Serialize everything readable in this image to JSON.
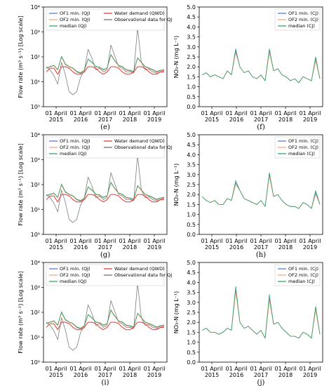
{
  "chart_data": [
    {
      "type": "line",
      "panel_label": "(e)",
      "scale": "log",
      "ylabel": "Flow rate (m³ s⁻¹) [Log scale]",
      "ylim": [
        1,
        10000
      ],
      "ytick_labels": [
        "10⁰",
        "10¹",
        "10²",
        "10³",
        "10⁴"
      ],
      "xtick_labels": [
        [
          "01 April",
          "2015"
        ],
        [
          "01 April",
          "2016"
        ],
        [
          "01 April",
          "2017"
        ],
        [
          "01 April",
          "2018"
        ],
        [
          "01 April",
          "2019"
        ]
      ],
      "legend": [
        "OF1 min. (QJ)",
        "OF2 min. (QJ)",
        "median (QJ)",
        "Water demand (QWD)",
        "Observational data for QJ"
      ],
      "series": [
        {
          "name": "OF1 min. (QJ)",
          "color": "#4a6fd8",
          "values": [
            35,
            40,
            45,
            30,
            100,
            50,
            40,
            35,
            25,
            22,
            28,
            80,
            60,
            40,
            38,
            30,
            35,
            120,
            70,
            45,
            40,
            30,
            28,
            25,
            90,
            60,
            40,
            35,
            30,
            25,
            28,
            30
          ]
        },
        {
          "name": "OF2 min. (QJ)",
          "color": "#f4a27a",
          "values": [
            34,
            39,
            44,
            29,
            95,
            48,
            39,
            34,
            24,
            21,
            27,
            78,
            58,
            39,
            37,
            29,
            34,
            115,
            68,
            44,
            39,
            29,
            27,
            24,
            88,
            58,
            39,
            34,
            29,
            24,
            27,
            29
          ]
        },
        {
          "name": "median (QJ)",
          "color": "#2ca05a",
          "values": [
            36,
            41,
            46,
            31,
            105,
            52,
            41,
            36,
            26,
            23,
            29,
            82,
            62,
            41,
            39,
            31,
            36,
            125,
            72,
            46,
            41,
            31,
            29,
            26,
            92,
            62,
            41,
            36,
            31,
            26,
            29,
            31
          ]
        },
        {
          "name": "Water demand (QWD)",
          "color": "#e0302a",
          "values": [
            25,
            35,
            35,
            20,
            40,
            40,
            35,
            25,
            20,
            20,
            25,
            40,
            40,
            35,
            25,
            20,
            25,
            40,
            40,
            35,
            25,
            20,
            20,
            25,
            40,
            40,
            35,
            25,
            20,
            20,
            25,
            25
          ]
        },
        {
          "name": "Observational data for QJ",
          "color": "#666666",
          "values": [
            40,
            30,
            18,
            8,
            60,
            20,
            4,
            3,
            4,
            15,
            28,
            200,
            90,
            30,
            35,
            25,
            30,
            300,
            110,
            40,
            35,
            25,
            25,
            22,
            1500,
            60,
            30,
            32,
            25,
            22,
            24,
            28
          ]
        }
      ]
    },
    {
      "type": "line",
      "panel_label": "(f)",
      "scale": "linear",
      "ylabel": "NO₃-N (mg L⁻¹)",
      "ylim": [
        0,
        5
      ],
      "ytick_labels": [
        "0.0",
        "0.5",
        "1.0",
        "1.5",
        "2.0",
        "2.5",
        "3.0",
        "3.5",
        "4.0",
        "4.5",
        "5.0"
      ],
      "xtick_labels": [
        [
          "01 April",
          "2015"
        ],
        [
          "01 April",
          "2016"
        ],
        [
          "01 April",
          "2017"
        ],
        [
          "01 April",
          "2018"
        ],
        [
          "01 April",
          "2019"
        ]
      ],
      "legend": [
        "OF1 min. (CJ)",
        "OF2 min. (CJ)",
        "median (CJ)"
      ],
      "series": [
        {
          "name": "OF1 min. (CJ)",
          "color": "#4a6fd8",
          "values": [
            1.6,
            1.7,
            1.5,
            1.6,
            1.5,
            1.4,
            1.8,
            1.6,
            2.8,
            2.0,
            1.7,
            1.8,
            1.5,
            1.4,
            1.6,
            1.3,
            2.8,
            1.8,
            1.9,
            1.6,
            1.5,
            1.3,
            1.4,
            1.2,
            1.5,
            1.4,
            1.3,
            2.4,
            1.4
          ]
        },
        {
          "name": "OF2 min. (CJ)",
          "color": "#f4a27a",
          "values": [
            1.6,
            1.7,
            1.5,
            1.6,
            1.5,
            1.4,
            1.8,
            1.6,
            2.7,
            2.0,
            1.7,
            1.8,
            1.5,
            1.4,
            1.6,
            1.3,
            2.7,
            1.8,
            1.9,
            1.6,
            1.5,
            1.3,
            1.4,
            1.2,
            1.5,
            1.4,
            1.3,
            2.3,
            1.4
          ]
        },
        {
          "name": "median (CJ)",
          "color": "#2ca05a",
          "values": [
            1.6,
            1.7,
            1.5,
            1.6,
            1.5,
            1.4,
            1.8,
            1.6,
            2.9,
            2.0,
            1.7,
            1.8,
            1.5,
            1.4,
            1.6,
            1.3,
            2.9,
            1.8,
            1.9,
            1.6,
            1.5,
            1.3,
            1.4,
            1.2,
            1.5,
            1.4,
            1.3,
            2.5,
            1.4
          ]
        }
      ]
    },
    {
      "type": "line",
      "panel_label": "(g)",
      "scale": "log",
      "ylabel": "Flow rate (m³ s⁻¹) [Log scale]",
      "ylim": [
        1,
        10000
      ],
      "ytick_labels": [
        "10⁰",
        "10¹",
        "10²",
        "10³",
        "10⁴"
      ],
      "xtick_labels": [
        [
          "01 April",
          "2015"
        ],
        [
          "01 April",
          "2016"
        ],
        [
          "01 April",
          "2017"
        ],
        [
          "01 April",
          "2018"
        ],
        [
          "01 April",
          "2019"
        ]
      ],
      "legend": [
        "OF1 min. (QJ)",
        "OF2 min. (QJ)",
        "median (QJ)",
        "Water demand (QWD)",
        "Observational data for QJ"
      ],
      "series": [
        {
          "name": "OF1 min. (QJ)",
          "color": "#4a6fd8",
          "values": [
            35,
            40,
            45,
            30,
            100,
            50,
            40,
            35,
            25,
            22,
            28,
            80,
            60,
            40,
            38,
            30,
            35,
            120,
            70,
            45,
            40,
            30,
            28,
            25,
            90,
            60,
            40,
            35,
            30,
            25,
            28,
            30
          ]
        },
        {
          "name": "OF2 min. (QJ)",
          "color": "#f4a27a",
          "values": [
            34,
            39,
            44,
            29,
            95,
            48,
            39,
            34,
            24,
            21,
            27,
            78,
            58,
            39,
            37,
            29,
            34,
            115,
            68,
            44,
            39,
            29,
            27,
            24,
            88,
            58,
            39,
            34,
            29,
            24,
            27,
            29
          ]
        },
        {
          "name": "median (QJ)",
          "color": "#2ca05a",
          "values": [
            36,
            41,
            46,
            31,
            105,
            52,
            41,
            36,
            26,
            23,
            29,
            82,
            62,
            41,
            39,
            31,
            36,
            125,
            72,
            46,
            41,
            31,
            29,
            26,
            92,
            62,
            41,
            36,
            31,
            26,
            29,
            31
          ]
        },
        {
          "name": "Water demand (QWD)",
          "color": "#e0302a",
          "values": [
            25,
            35,
            35,
            20,
            40,
            40,
            35,
            25,
            20,
            20,
            25,
            40,
            40,
            35,
            25,
            20,
            25,
            40,
            40,
            35,
            25,
            20,
            20,
            25,
            40,
            40,
            35,
            25,
            20,
            20,
            25,
            25
          ]
        },
        {
          "name": "Observational data for QJ",
          "color": "#666666",
          "values": [
            40,
            30,
            18,
            8,
            60,
            20,
            4,
            3,
            4,
            15,
            28,
            200,
            90,
            30,
            35,
            25,
            30,
            300,
            110,
            40,
            35,
            25,
            25,
            22,
            1500,
            60,
            30,
            32,
            25,
            22,
            24,
            28
          ]
        }
      ]
    },
    {
      "type": "line",
      "panel_label": "(h)",
      "scale": "linear",
      "ylabel": "NO₃-N (mg L⁻¹)",
      "ylim": [
        0,
        5
      ],
      "ytick_labels": [
        "0.0",
        "0.5",
        "1.0",
        "1.5",
        "2.0",
        "2.5",
        "3.0",
        "3.5",
        "4.0",
        "4.5",
        "5.0"
      ],
      "xtick_labels": [
        [
          "01 April",
          "2015"
        ],
        [
          "01 April",
          "2016"
        ],
        [
          "01 April",
          "2017"
        ],
        [
          "01 April",
          "2018"
        ],
        [
          "01 April",
          "2019"
        ]
      ],
      "legend": [
        "OF1 min. (CJ)",
        "OF2 min. (CJ)",
        "median (CJ)"
      ],
      "series": [
        {
          "name": "OF1 min. (CJ)",
          "color": "#4a6fd8",
          "values": [
            1.9,
            1.7,
            1.6,
            1.7,
            1.5,
            1.5,
            1.8,
            1.7,
            2.6,
            2.2,
            1.8,
            1.7,
            1.6,
            1.5,
            1.7,
            1.4,
            3.0,
            1.9,
            2.0,
            1.7,
            1.5,
            1.4,
            1.4,
            1.3,
            1.6,
            1.5,
            1.3,
            2.1,
            1.5
          ]
        },
        {
          "name": "OF2 min. (CJ)",
          "color": "#f4a27a",
          "values": [
            1.9,
            1.7,
            1.6,
            1.7,
            1.5,
            1.5,
            1.8,
            1.7,
            2.5,
            2.2,
            1.8,
            1.7,
            1.6,
            1.5,
            1.7,
            1.4,
            2.9,
            1.9,
            2.0,
            1.7,
            1.5,
            1.4,
            1.4,
            1.3,
            1.6,
            1.5,
            1.3,
            2.0,
            1.5
          ]
        },
        {
          "name": "median (CJ)",
          "color": "#2ca05a",
          "values": [
            1.9,
            1.7,
            1.6,
            1.7,
            1.5,
            1.5,
            1.8,
            1.7,
            2.7,
            2.2,
            1.8,
            1.7,
            1.6,
            1.5,
            1.7,
            1.4,
            3.1,
            1.9,
            2.0,
            1.7,
            1.5,
            1.4,
            1.4,
            1.3,
            1.6,
            1.5,
            1.3,
            2.2,
            1.5
          ]
        }
      ]
    },
    {
      "type": "line",
      "panel_label": "(i)",
      "scale": "log",
      "ylabel": "Flow rate (m³ s⁻¹) [Log scale]",
      "ylim": [
        1,
        10000
      ],
      "ytick_labels": [
        "10⁰",
        "10¹",
        "10²",
        "10³",
        "10⁴"
      ],
      "xtick_labels": [
        [
          "01 April",
          "2015"
        ],
        [
          "01 April",
          "2016"
        ],
        [
          "01 April",
          "2017"
        ],
        [
          "01 April",
          "2018"
        ],
        [
          "01 April",
          "2019"
        ]
      ],
      "legend": [
        "OF1 min. (QJ)",
        "OF2 min. (QJ)",
        "median (QJ)",
        "Water demand (QWD)",
        "Observational data for QJ"
      ],
      "series": [
        {
          "name": "OF1 min. (QJ)",
          "color": "#4a6fd8",
          "values": [
            35,
            40,
            45,
            30,
            100,
            50,
            40,
            35,
            25,
            22,
            28,
            80,
            60,
            40,
            38,
            30,
            35,
            120,
            70,
            45,
            40,
            30,
            28,
            25,
            90,
            60,
            40,
            35,
            30,
            25,
            28,
            30
          ]
        },
        {
          "name": "OF2 min. (QJ)",
          "color": "#f4a27a",
          "values": [
            34,
            39,
            44,
            29,
            95,
            48,
            39,
            34,
            24,
            21,
            27,
            78,
            58,
            39,
            37,
            29,
            34,
            115,
            68,
            44,
            39,
            29,
            27,
            24,
            88,
            58,
            39,
            34,
            29,
            24,
            27,
            29
          ]
        },
        {
          "name": "median (QJ)",
          "color": "#2ca05a",
          "values": [
            36,
            41,
            46,
            31,
            105,
            52,
            41,
            36,
            26,
            23,
            29,
            82,
            62,
            41,
            39,
            31,
            36,
            125,
            72,
            46,
            41,
            31,
            29,
            26,
            92,
            62,
            41,
            36,
            31,
            26,
            29,
            31
          ]
        },
        {
          "name": "Water demand (QWD)",
          "color": "#e0302a",
          "values": [
            25,
            35,
            35,
            20,
            40,
            40,
            35,
            25,
            20,
            20,
            25,
            40,
            40,
            35,
            25,
            20,
            25,
            40,
            40,
            35,
            25,
            20,
            20,
            25,
            40,
            40,
            35,
            25,
            20,
            20,
            25,
            25
          ]
        },
        {
          "name": "Observational data for QJ",
          "color": "#666666",
          "values": [
            40,
            30,
            18,
            8,
            60,
            20,
            4,
            3,
            4,
            15,
            28,
            200,
            90,
            30,
            35,
            25,
            30,
            300,
            110,
            40,
            35,
            25,
            25,
            22,
            1500,
            60,
            30,
            32,
            25,
            22,
            24,
            28
          ]
        }
      ]
    },
    {
      "type": "line",
      "panel_label": "(j)",
      "scale": "linear",
      "ylabel": "NO₃-N (mg L⁻¹)",
      "ylim": [
        0,
        5
      ],
      "ytick_labels": [
        "0.0",
        "0.5",
        "1.0",
        "1.5",
        "2.0",
        "2.5",
        "3.0",
        "3.5",
        "4.0",
        "4.5",
        "5.0"
      ],
      "xtick_labels": [
        [
          "01 April",
          "2015"
        ],
        [
          "01 April",
          "2016"
        ],
        [
          "01 April",
          "2017"
        ],
        [
          "01 April",
          "2018"
        ],
        [
          "01 April",
          "2019"
        ]
      ],
      "legend": [
        "OF1 min. (CJ)",
        "OF2 min. (CJ)",
        "median (CJ)"
      ],
      "series": [
        {
          "name": "OF1 min. (CJ)",
          "color": "#4a6fd8",
          "values": [
            1.6,
            1.7,
            1.5,
            1.5,
            1.4,
            1.5,
            1.7,
            1.6,
            3.6,
            2.0,
            1.7,
            1.8,
            1.6,
            1.4,
            1.6,
            1.2,
            3.2,
            1.9,
            2.0,
            1.7,
            1.5,
            1.3,
            1.3,
            1.2,
            1.5,
            1.4,
            1.2,
            2.7,
            1.4
          ]
        },
        {
          "name": "OF2 min. (CJ)",
          "color": "#f4a27a",
          "values": [
            1.6,
            1.7,
            1.5,
            1.5,
            1.4,
            1.5,
            1.7,
            1.6,
            3.5,
            2.0,
            1.7,
            1.8,
            1.6,
            1.4,
            1.6,
            1.2,
            3.1,
            1.9,
            2.0,
            1.7,
            1.5,
            1.3,
            1.3,
            1.2,
            1.5,
            1.4,
            1.2,
            2.6,
            1.4
          ]
        },
        {
          "name": "median (CJ)",
          "color": "#2ca05a",
          "values": [
            1.6,
            1.7,
            1.5,
            1.5,
            1.4,
            1.5,
            1.7,
            1.6,
            3.8,
            2.0,
            1.7,
            1.8,
            1.6,
            1.4,
            1.6,
            1.2,
            3.4,
            1.9,
            2.0,
            1.7,
            1.5,
            1.3,
            1.3,
            1.2,
            1.5,
            1.4,
            1.2,
            2.8,
            1.4
          ]
        }
      ]
    }
  ]
}
